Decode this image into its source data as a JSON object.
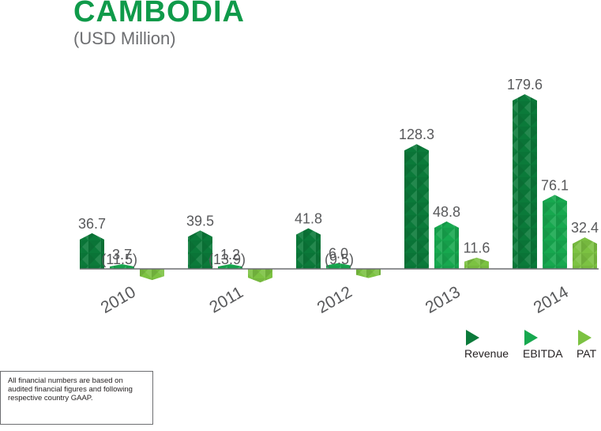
{
  "header": {
    "title": "CAMBODIA",
    "subtitle": "(USD Million)"
  },
  "note": "All financial numbers are based on audited financial figures and following respective country GAAP.",
  "colors": {
    "revenue": "#0b7a3a",
    "ebitda": "#17a84f",
    "pat": "#7cc242",
    "title": "#0f9a4a"
  },
  "chart_data": {
    "type": "bar",
    "categories": [
      "2010",
      "2011",
      "2012",
      "2013",
      "2014"
    ],
    "series": [
      {
        "name": "Revenue",
        "values": [
          36.7,
          39.5,
          41.8,
          128.3,
          179.6
        ],
        "labels": [
          "36.7",
          "39.5",
          "41.8",
          "128.3",
          "179.6"
        ]
      },
      {
        "name": "EBITDA",
        "values": [
          3.7,
          1.2,
          6.0,
          48.8,
          76.1
        ],
        "labels": [
          "3.7",
          "1.2",
          "6.0",
          "48.8",
          "76.1"
        ]
      },
      {
        "name": "PAT",
        "values": [
          -11.5,
          -13.9,
          -9.5,
          11.6,
          32.4
        ],
        "labels": [
          "(11.5)",
          "(13.9)",
          "(9.5)",
          "11.6",
          "32.4"
        ]
      }
    ],
    "legend": {
      "position": "bottom-right",
      "entries": [
        "Revenue",
        "EBITDA",
        "PAT"
      ]
    },
    "grid": false,
    "xlabel": "",
    "ylabel": ""
  }
}
